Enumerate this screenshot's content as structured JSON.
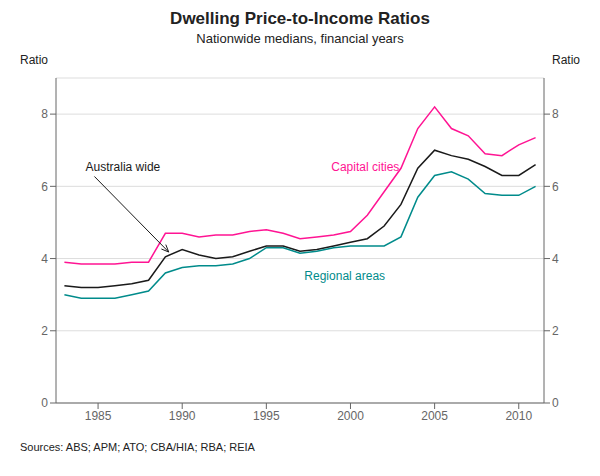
{
  "chart_data": {
    "type": "line",
    "title": "Dwelling Price-to-Income Ratios",
    "subtitle": "Nationwide medians, financial years",
    "y_label": "Ratio",
    "y2_label": "Ratio",
    "source": "Sources: ABS; APM; ATO; CBA/HIA; RBA; REIA",
    "x": [
      1983,
      1984,
      1985,
      1986,
      1987,
      1988,
      1989,
      1990,
      1991,
      1992,
      1993,
      1994,
      1995,
      1996,
      1997,
      1998,
      1999,
      2000,
      2001,
      2002,
      2003,
      2004,
      2005,
      2006,
      2007,
      2008,
      2009,
      2010,
      2011
    ],
    "series": [
      {
        "name": "Capital cities",
        "color": "#FF1493",
        "values": [
          3.9,
          3.85,
          3.85,
          3.85,
          3.9,
          3.9,
          4.7,
          4.7,
          4.6,
          4.65,
          4.65,
          4.75,
          4.8,
          4.7,
          4.55,
          4.6,
          4.65,
          4.75,
          5.2,
          5.85,
          6.5,
          7.6,
          8.2,
          7.6,
          7.4,
          6.9,
          6.85,
          7.15,
          7.35
        ]
      },
      {
        "name": "Australia wide",
        "color": "#1a1a1a",
        "values": [
          3.25,
          3.2,
          3.2,
          3.25,
          3.3,
          3.4,
          4.05,
          4.25,
          4.1,
          4.0,
          4.05,
          4.2,
          4.35,
          4.35,
          4.2,
          4.25,
          4.35,
          4.45,
          4.55,
          4.9,
          5.5,
          6.5,
          7.0,
          6.85,
          6.75,
          6.55,
          6.3,
          6.3,
          6.6
        ]
      },
      {
        "name": "Regional areas",
        "color": "#008B8B",
        "values": [
          3.0,
          2.9,
          2.9,
          2.9,
          3.0,
          3.1,
          3.6,
          3.75,
          3.8,
          3.8,
          3.85,
          4.0,
          4.3,
          4.3,
          4.15,
          4.2,
          4.3,
          4.35,
          4.35,
          4.35,
          4.6,
          5.7,
          6.3,
          6.4,
          6.2,
          5.8,
          5.75,
          5.75,
          6.0
        ]
      }
    ],
    "xlim": [
      1982.5,
      2011.5
    ],
    "xticks": [
      1985,
      1990,
      1995,
      2000,
      2005,
      2010
    ],
    "ylim": [
      0,
      9
    ],
    "yticks": [
      0,
      2,
      4,
      6,
      8
    ],
    "y2lim": [
      0,
      9
    ],
    "y2ticks": [
      0,
      2,
      4,
      6,
      8
    ],
    "grid": true,
    "annotations": [
      {
        "text": "Australia wide",
        "x": 1984.2,
        "y": 6.55,
        "arrow_x": 1989.2,
        "arrow_y": 4.18
      },
      {
        "text": "Capital cities",
        "x": 1998.8,
        "y": 6.55
      },
      {
        "text": "Regional areas",
        "x": 1997.2,
        "y": 3.52
      }
    ]
  }
}
